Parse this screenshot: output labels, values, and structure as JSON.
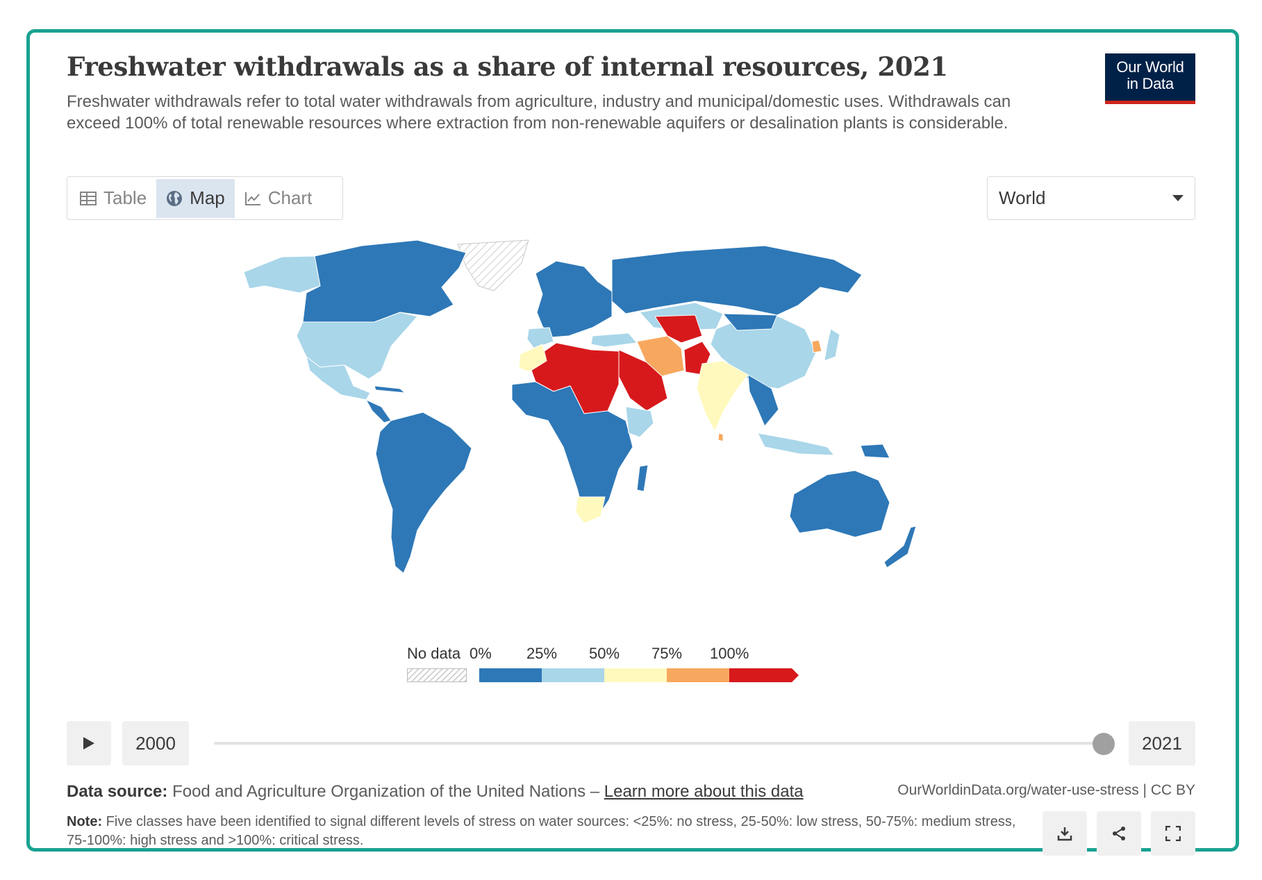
{
  "header": {
    "title": "Freshwater withdrawals as a share of internal resources, 2021",
    "subtitle": "Freshwater withdrawals refer to total water withdrawals from agriculture, industry and municipal/domestic uses. Withdrawals can exceed 100% of total renewable resources where extraction from non-renewable aquifers or desalination plants is considerable.",
    "logo_line1": "Our World",
    "logo_line2": "in Data"
  },
  "tabs": [
    {
      "label": "Table",
      "active": false,
      "icon": "table-icon"
    },
    {
      "label": "Map",
      "active": true,
      "icon": "globe-icon"
    },
    {
      "label": "Chart",
      "active": false,
      "icon": "line-chart-icon"
    }
  ],
  "region_select": {
    "value": "World"
  },
  "legend": {
    "no_data_label": "No data",
    "ticks": [
      "0%",
      "25%",
      "50%",
      "75%",
      "100%"
    ],
    "bins": [
      {
        "range": "0–25%",
        "color": "#2e78b7"
      },
      {
        "range": "25–50%",
        "color": "#a9d6e9"
      },
      {
        "range": "50–75%",
        "color": "#fff9be"
      },
      {
        "range": "75–100%",
        "color": "#f8a85e"
      },
      {
        "range": ">100%",
        "color": "#d7191c"
      }
    ]
  },
  "timeline": {
    "start_year": "2000",
    "end_year": "2021",
    "position": 1.0
  },
  "footer": {
    "source_label": "Data source:",
    "source_text": "Food and Agriculture Organization of the United Nations – ",
    "source_link": "Learn more about this data",
    "url": "OurWorldinData.org/water-use-stress | CC BY",
    "note_label": "Note:",
    "note_text": "Five classes have been identified to signal different levels of stress on water sources: <25%: no stress, 25-50%: low stress, 50-75%: medium stress, 75-100%: high stress and >100%: critical stress."
  },
  "colors": {
    "accent_border": "#1aa290",
    "logo_bg": "#002147",
    "logo_stripe": "#ce261e",
    "no_stress": "#2e78b7",
    "low_stress": "#a9d6e9",
    "medium_stress": "#fff9be",
    "high_stress": "#f8a85e",
    "critical_stress": "#d7191c"
  }
}
